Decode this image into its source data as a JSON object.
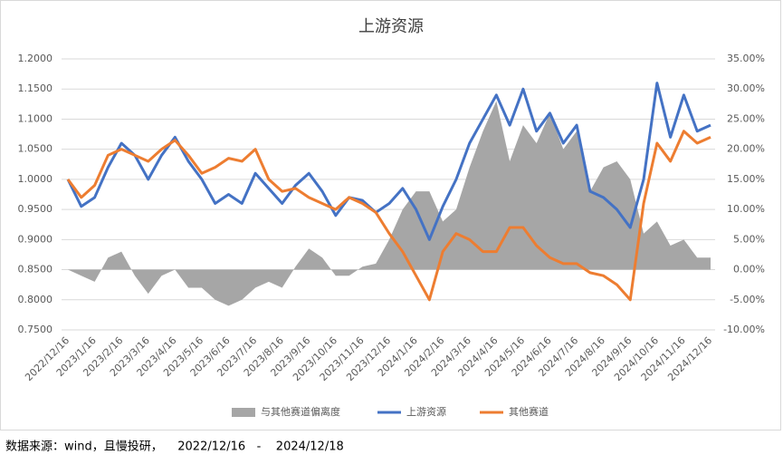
{
  "chart_data": {
    "type": "line",
    "title": "上游资源",
    "source": "数据来源：wind，且慢投研，    2022/12/16   -    2024/12/18",
    "categories": [
      "2022/12/16",
      null,
      "2023/1/16",
      null,
      "2023/2/16",
      null,
      "2023/3/16",
      null,
      "2023/4/16",
      null,
      "2023/5/16",
      null,
      "2023/6/16",
      null,
      "2023/7/16",
      null,
      "2023/8/16",
      null,
      "2023/9/16",
      null,
      "2023/10/16",
      null,
      "2023/11/16",
      null,
      "2023/12/16",
      null,
      "2024/1/16",
      null,
      "2024/2/16",
      null,
      "2024/3/16",
      null,
      "2024/4/16",
      null,
      "2024/5/16",
      null,
      "2024/6/16",
      null,
      "2024/7/16",
      null,
      "2024/8/16",
      null,
      "2024/9/16",
      null,
      "2024/10/16",
      null,
      "2024/11/16",
      null,
      "2024/12/16"
    ],
    "series": [
      {
        "name": "与其他赛道偏离度",
        "type": "area",
        "axis": "y2",
        "color": "#a6a6a6",
        "values": [
          0,
          -1,
          -2,
          2,
          3,
          -1,
          -4,
          -1,
          0,
          -3,
          -3,
          -5,
          -6,
          -5,
          -3,
          -2,
          -3,
          0.5,
          3.5,
          2,
          -1,
          -1,
          0.5,
          1,
          5,
          10,
          13,
          13,
          8,
          10,
          17,
          23,
          28,
          18,
          24,
          21,
          26,
          20,
          23,
          13,
          17,
          18,
          15,
          6,
          8,
          4,
          5,
          2,
          2
        ]
      },
      {
        "name": "上游资源",
        "type": "line",
        "color": "#4472c4",
        "values": [
          1.0,
          0.955,
          0.97,
          1.02,
          1.06,
          1.04,
          1.0,
          1.04,
          1.07,
          1.03,
          1.0,
          0.96,
          0.975,
          0.96,
          1.01,
          0.985,
          0.96,
          0.99,
          1.01,
          0.98,
          0.94,
          0.97,
          0.965,
          0.945,
          0.96,
          0.985,
          0.95,
          0.9,
          0.955,
          1.0,
          1.06,
          1.1,
          1.14,
          1.09,
          1.15,
          1.08,
          1.11,
          1.06,
          1.09,
          0.98,
          0.97,
          0.95,
          0.92,
          1.0,
          1.16,
          1.07,
          1.14,
          1.08,
          1.09
        ]
      },
      {
        "name": "其他赛道",
        "type": "line",
        "color": "#ed7d31",
        "values": [
          1.0,
          0.97,
          0.99,
          1.04,
          1.05,
          1.04,
          1.03,
          1.05,
          1.065,
          1.04,
          1.01,
          1.02,
          1.035,
          1.03,
          1.05,
          1.0,
          0.98,
          0.985,
          0.97,
          0.96,
          0.95,
          0.97,
          0.96,
          0.945,
          0.91,
          0.88,
          0.84,
          0.8,
          0.88,
          0.91,
          0.9,
          0.88,
          0.88,
          0.92,
          0.92,
          0.89,
          0.87,
          0.86,
          0.86,
          0.845,
          0.84,
          0.825,
          0.8,
          0.96,
          1.06,
          1.03,
          1.08,
          1.06,
          1.07
        ]
      }
    ],
    "ylim": [
      0.75,
      1.2
    ],
    "yticks": [
      {
        "value": 0.75,
        "label": "0.7500"
      },
      {
        "value": 0.8,
        "label": "0.8000"
      },
      {
        "value": 0.85,
        "label": "0.8500"
      },
      {
        "value": 0.9,
        "label": "0.9000"
      },
      {
        "value": 0.95,
        "label": "0.9500"
      },
      {
        "value": 1.0,
        "label": "1.0000"
      },
      {
        "value": 1.05,
        "label": "1.0500"
      },
      {
        "value": 1.1,
        "label": "1.1000"
      },
      {
        "value": 1.15,
        "label": "1.1500"
      },
      {
        "value": 1.2,
        "label": "1.2000"
      }
    ],
    "y2lim": [
      -10,
      35
    ],
    "y2ticks": [
      {
        "value": -10,
        "label": "-10.00%"
      },
      {
        "value": -5,
        "label": "-5.00%"
      },
      {
        "value": 0,
        "label": "0.00%"
      },
      {
        "value": 5,
        "label": "5.00%"
      },
      {
        "value": 10,
        "label": "10.00%"
      },
      {
        "value": 15,
        "label": "15.00%"
      },
      {
        "value": 20,
        "label": "20.00%"
      },
      {
        "value": 25,
        "label": "25.00%"
      },
      {
        "value": 30,
        "label": "30.00%"
      },
      {
        "value": 35,
        "label": "35.00%"
      }
    ],
    "grid": true,
    "legend": "bottom"
  }
}
